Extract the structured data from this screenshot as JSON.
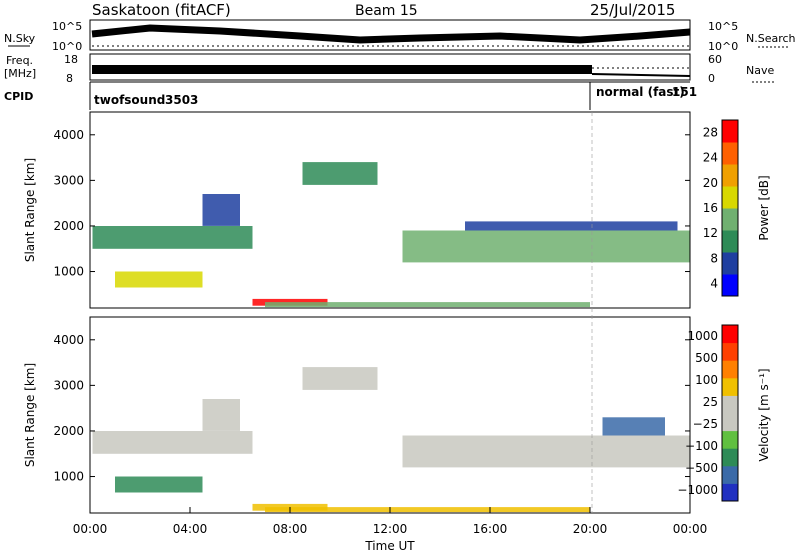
{
  "header": {
    "station": "Saskatoon (fitACF)",
    "beam": "Beam 15",
    "date": "25/Jul/2015"
  },
  "top_panels": {
    "nsky_label": "N.Sky",
    "nsky_ticks": [
      "10^5",
      "10^0"
    ],
    "nsearch_label": "N.Search",
    "freq_label_1": "Freq.",
    "freq_label_2": "[MHz]",
    "freq_ticks": [
      "18",
      "8"
    ],
    "nave_label": "Nave",
    "nave_ticks": [
      "60",
      "0"
    ],
    "cpid_label": "CPID",
    "cpid_segments": [
      {
        "name": "twofsound",
        "id": "3503",
        "start_hour": 0,
        "end_hour": 20
      },
      {
        "name": "normal (fast)",
        "id": "151",
        "start_hour": 20,
        "end_hour": 24
      }
    ]
  },
  "colors": {
    "power_scale": [
      "#0000ff",
      "#1f3fa0",
      "#2e8b57",
      "#70b070",
      "#d8d800",
      "#f0a000",
      "#ff6000",
      "#ff0000"
    ],
    "velocity_scale": [
      "#2030c0",
      "#3a6aa8",
      "#2e8b57",
      "#60c040",
      "#c8c8c0",
      "#c8c8c0",
      "#f0c000",
      "#ff8000",
      "#ff4000",
      "#ff0000"
    ]
  },
  "chart_data": [
    {
      "type": "heatmap",
      "quantity": "power",
      "ylabel": "Slant Range [km]",
      "colorbar_label": "Power [dB]",
      "colorbar_ticks": [
        "28",
        "24",
        "20",
        "16",
        "12",
        "8",
        "4"
      ],
      "ylim": [
        200,
        4500
      ],
      "yticks": [
        "1000",
        "2000",
        "3000",
        "4000"
      ],
      "xlim": [
        0,
        24
      ],
      "bands": [
        {
          "t0": 0.1,
          "t1": 6.5,
          "r0": 1500,
          "r1": 2000,
          "level": 2
        },
        {
          "t0": 1.0,
          "t1": 4.5,
          "r0": 650,
          "r1": 1000,
          "level": 4
        },
        {
          "t0": 4.5,
          "t1": 6.0,
          "r0": 2000,
          "r1": 2700,
          "level": 1
        },
        {
          "t0": 6.5,
          "t1": 9.5,
          "r0": 250,
          "r1": 400,
          "level": 7
        },
        {
          "t0": 7.0,
          "t1": 20.0,
          "r0": 220,
          "r1": 330,
          "level": 3
        },
        {
          "t0": 8.5,
          "t1": 11.5,
          "r0": 2900,
          "r1": 3400,
          "level": 2
        },
        {
          "t0": 12.5,
          "t1": 24.0,
          "r0": 1200,
          "r1": 1900,
          "level": 3
        },
        {
          "t0": 15.0,
          "t1": 23.5,
          "r0": 1900,
          "r1": 2100,
          "level": 1
        }
      ]
    },
    {
      "type": "heatmap",
      "quantity": "velocity",
      "xlabel": "Time UT",
      "ylabel": "Slant Range [km]",
      "colorbar_label": "Velocity [m s⁻¹]",
      "colorbar_ticks": [
        "1000",
        "500",
        "100",
        "25",
        "−25",
        "−100",
        "−500",
        "−1000"
      ],
      "ylim": [
        200,
        4500
      ],
      "yticks": [
        "1000",
        "2000",
        "3000",
        "4000"
      ],
      "xlim": [
        0,
        24
      ],
      "xticks": [
        "00:00",
        "04:00",
        "08:00",
        "12:00",
        "16:00",
        "20:00",
        "00:00"
      ],
      "bands": [
        {
          "t0": 0.1,
          "t1": 6.5,
          "r0": 1500,
          "r1": 2000,
          "level": 4
        },
        {
          "t0": 1.0,
          "t1": 4.5,
          "r0": 650,
          "r1": 1000,
          "level": 2
        },
        {
          "t0": 4.5,
          "t1": 6.0,
          "r0": 2000,
          "r1": 2700,
          "level": 4
        },
        {
          "t0": 6.5,
          "t1": 9.5,
          "r0": 250,
          "r1": 400,
          "level": 6
        },
        {
          "t0": 7.0,
          "t1": 20.0,
          "r0": 220,
          "r1": 330,
          "level": 6
        },
        {
          "t0": 8.5,
          "t1": 11.5,
          "r0": 2900,
          "r1": 3400,
          "level": 4
        },
        {
          "t0": 12.5,
          "t1": 24.0,
          "r0": 1200,
          "r1": 1900,
          "level": 4
        },
        {
          "t0": 20.5,
          "t1": 23.0,
          "r0": 1900,
          "r1": 2300,
          "level": 1
        }
      ]
    }
  ]
}
